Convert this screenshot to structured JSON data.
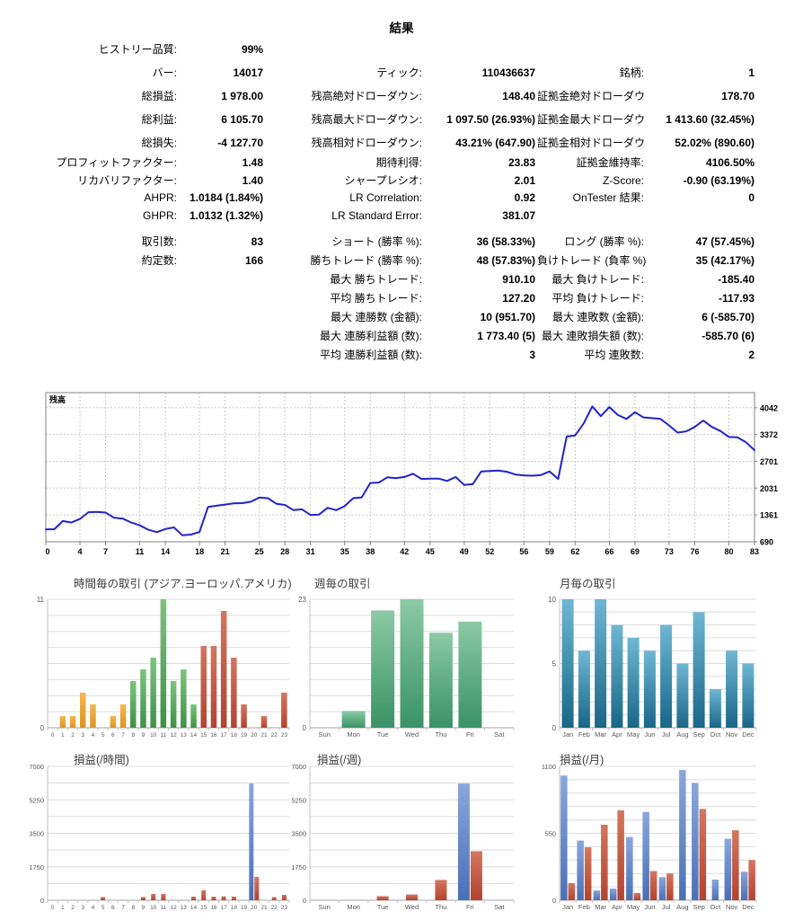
{
  "title": "結果",
  "stats": {
    "sections": [
      {
        "rows": [
          [
            "ヒストリー品質:",
            "99%",
            "",
            "",
            "",
            ""
          ],
          [
            "バー:",
            "14017",
            "ティック:",
            "110436637",
            "銘柄:",
            "1"
          ],
          [
            "総損益:",
            "1 978.00",
            "残高絶対ドローダウン:",
            "148.40",
            "証拠金絶対ドローダウン:",
            "178.70"
          ],
          [
            "総利益:",
            "6 105.70",
            "残高最大ドローダウン:",
            "1 097.50 (26.93%)",
            "証拠金最大ドローダウン:",
            "1 413.60 (32.45%)"
          ],
          [
            "総損失:",
            "-4 127.70",
            "残高相対ドローダウン:",
            "43.21% (647.90)",
            "証拠金相対ドローダウン:",
            "52.02% (890.60)"
          ]
        ]
      },
      {
        "rows": [
          [
            "プロフィットファクター:",
            "1.48",
            "期待利得:",
            "23.83",
            "証拠金維持率:",
            "4106.50%"
          ],
          [
            "リカバリファクター:",
            "1.40",
            "シャープレシオ:",
            "2.01",
            "Z-Score:",
            "-0.90 (63.19%)"
          ],
          [
            "AHPR:",
            "1.0184 (1.84%)",
            "LR Correlation:",
            "0.92",
            "OnTester 結果:",
            "0"
          ],
          [
            "GHPR:",
            "1.0132 (1.32%)",
            "LR Standard Error:",
            "381.07",
            "",
            ""
          ]
        ]
      },
      {
        "rows": [
          [
            "取引数:",
            "83",
            "ショート (勝率 %):",
            "36 (58.33%)",
            "ロング (勝率 %):",
            "47 (57.45%)"
          ],
          [
            "約定数:",
            "166",
            "勝ちトレード (勝率 %):",
            "48 (57.83%)",
            "負けトレード (負率 %):",
            "35 (42.17%)"
          ],
          [
            "",
            "",
            "最大 勝ちトレード:",
            "910.10",
            "最大 負けトレード:",
            "-185.40"
          ],
          [
            "",
            "",
            "平均 勝ちトレード:",
            "127.20",
            "平均 負けトレード:",
            "-117.93"
          ],
          [
            "",
            "",
            "最大 連勝数 (金額):",
            "10 (951.70)",
            "最大 連敗数 (金額):",
            "6 (-585.70)"
          ],
          [
            "",
            "",
            "最大 連勝利益額 (数):",
            "1 773.40 (5)",
            "最大 連敗損失額 (数):",
            "-585.70 (6)"
          ],
          [
            "",
            "",
            "平均 連勝利益額 (数):",
            "3",
            "平均 連敗数:",
            "2"
          ]
        ]
      }
    ]
  },
  "palette": {
    "orange": [
      "#f2b851",
      "#db9526"
    ],
    "green": [
      "#7dc47d",
      "#3f9145"
    ],
    "green2": [
      "#8bcaa4",
      "#3a9265"
    ],
    "teal": [
      "#6fb7d4",
      "#196687"
    ],
    "blue": [
      "#8aa7dc",
      "#4a6fb5"
    ],
    "red": [
      "#d4765f",
      "#b2432f"
    ]
  },
  "chart_data": [
    {
      "id": "balance",
      "type": "line",
      "title": "残高",
      "line_color": "#2222cc",
      "x_ticks": [
        0,
        4,
        7,
        11,
        14,
        18,
        21,
        25,
        28,
        31,
        35,
        38,
        42,
        45,
        49,
        52,
        56,
        59,
        62,
        66,
        69,
        73,
        76,
        80,
        83
      ],
      "y_ticks": [
        690,
        1361,
        2031,
        2701,
        3372,
        4042
      ],
      "ylim": [
        690,
        4419
      ],
      "xlim": [
        0,
        83
      ],
      "grid": "dashed",
      "values": [
        1000,
        1005,
        1210,
        1170,
        1260,
        1430,
        1435,
        1420,
        1290,
        1270,
        1170,
        1100,
        990,
        930,
        1010,
        1050,
        852,
        870,
        935,
        1560,
        1590,
        1620,
        1650,
        1655,
        1690,
        1795,
        1780,
        1640,
        1610,
        1480,
        1500,
        1360,
        1370,
        1540,
        1480,
        1580,
        1780,
        1800,
        2160,
        2170,
        2300,
        2280,
        2310,
        2390,
        2260,
        2270,
        2270,
        2210,
        2310,
        2110,
        2130,
        2450,
        2460,
        2470,
        2440,
        2370,
        2350,
        2340,
        2360,
        2450,
        2260,
        3320,
        3350,
        3650,
        4075,
        3830,
        4057,
        3860,
        3760,
        3930,
        3800,
        3780,
        3760,
        3600,
        3420,
        3450,
        3560,
        3720,
        3560,
        3460,
        3310,
        3300,
        3180,
        2978
      ]
    },
    {
      "id": "trades_by_hour",
      "type": "bar",
      "title": "時間毎の取引 (アジア.ヨーロッパ.アメリカ)",
      "categories": [
        "0",
        "1",
        "2",
        "3",
        "4",
        "5",
        "6",
        "7",
        "8",
        "9",
        "10",
        "11",
        "12",
        "13",
        "14",
        "15",
        "16",
        "17",
        "18",
        "19",
        "20",
        "21",
        "22",
        "23"
      ],
      "values": [
        0,
        1,
        1,
        3,
        2,
        0,
        1,
        2,
        4,
        5,
        6,
        11,
        4,
        5,
        2,
        7,
        7,
        10,
        6,
        2,
        0,
        1,
        0,
        3
      ],
      "bar_colors": [
        "orange",
        "orange",
        "orange",
        "orange",
        "orange",
        "orange",
        "orange",
        "orange",
        "green",
        "green",
        "green",
        "green",
        "green",
        "green",
        "green",
        "red",
        "red",
        "red",
        "red",
        "red",
        "red",
        "red",
        "red",
        "red"
      ],
      "ymax": 11,
      "y_ticks": [
        0,
        11
      ]
    },
    {
      "id": "trades_by_weekday",
      "type": "bar",
      "title": "週毎の取引",
      "categories": [
        "Sun",
        "Mon",
        "Tue",
        "Wed",
        "Thu",
        "Fri",
        "Sat"
      ],
      "values": [
        0,
        3,
        21,
        23,
        17,
        19,
        0
      ],
      "bar_colors": [
        "green2",
        "green2",
        "green2",
        "green2",
        "green2",
        "green2",
        "green2"
      ],
      "ymax": 23,
      "y_ticks": [
        0,
        23
      ]
    },
    {
      "id": "trades_by_month",
      "type": "bar",
      "title": "月毎の取引",
      "categories": [
        "Jan",
        "Feb",
        "Mar",
        "Apr",
        "May",
        "Jun",
        "Jul",
        "Aug",
        "Sep",
        "Oct",
        "Nov",
        "Dec"
      ],
      "values": [
        10,
        6,
        10,
        8,
        7,
        6,
        8,
        5,
        9,
        3,
        6,
        5
      ],
      "bar_colors": [
        "teal",
        "teal",
        "teal",
        "teal",
        "teal",
        "teal",
        "teal",
        "teal",
        "teal",
        "teal",
        "teal",
        "teal"
      ],
      "ymax": 10,
      "y_ticks": [
        0,
        5,
        10
      ]
    },
    {
      "id": "pl_by_hour",
      "type": "bar",
      "title": "損益(/時間)",
      "categories": [
        "0",
        "1",
        "2",
        "3",
        "4",
        "5",
        "6",
        "7",
        "8",
        "9",
        "10",
        "11",
        "12",
        "13",
        "14",
        "15",
        "16",
        "17",
        "18",
        "19",
        "20",
        "21",
        "22",
        "23"
      ],
      "series": [
        {
          "name": "profit",
          "color": "blue",
          "values": [
            0,
            0,
            0,
            0,
            0,
            0,
            0,
            0,
            0,
            0,
            0,
            0,
            0,
            0,
            0,
            0,
            0,
            0,
            0,
            0,
            6105,
            0,
            0,
            0
          ]
        },
        {
          "name": "loss",
          "color": "red",
          "values": [
            0,
            0,
            0,
            0,
            0,
            170,
            0,
            0,
            0,
            170,
            330,
            330,
            0,
            0,
            190,
            520,
            190,
            200,
            190,
            0,
            1220,
            0,
            170,
            280
          ]
        }
      ],
      "ymax": 7000,
      "y_ticks": [
        0,
        1750,
        3500,
        5250,
        7000
      ]
    },
    {
      "id": "pl_by_weekday",
      "type": "bar",
      "title": "損益(/週)",
      "categories": [
        "Sun",
        "Mon",
        "Tue",
        "Wed",
        "Thu",
        "Fri",
        "Sat"
      ],
      "series": [
        {
          "name": "profit",
          "color": "blue",
          "values": [
            0,
            0,
            0,
            0,
            0,
            6105,
            0
          ]
        },
        {
          "name": "loss",
          "color": "red",
          "values": [
            0,
            0,
            210,
            300,
            1060,
            2560,
            0
          ]
        }
      ],
      "ymax": 7000,
      "y_ticks": [
        0,
        1750,
        3500,
        5250,
        7000
      ]
    },
    {
      "id": "pl_by_month",
      "type": "bar",
      "title": "損益(/月)",
      "categories": [
        "Jan",
        "Feb",
        "Mar",
        "Apr",
        "May",
        "Jun",
        "Jul",
        "Aug",
        "Sep",
        "Oct",
        "Nov",
        "Dec"
      ],
      "series": [
        {
          "name": "profit",
          "color": "blue",
          "values": [
            1025,
            490,
            80,
            95,
            520,
            725,
            190,
            1070,
            965,
            170,
            505,
            235
          ]
        },
        {
          "name": "loss",
          "color": "red",
          "values": [
            140,
            435,
            620,
            740,
            60,
            240,
            220,
            0,
            750,
            0,
            575,
            330
          ]
        }
      ],
      "ymax": 1100,
      "y_ticks": [
        0,
        550,
        1100
      ]
    }
  ]
}
